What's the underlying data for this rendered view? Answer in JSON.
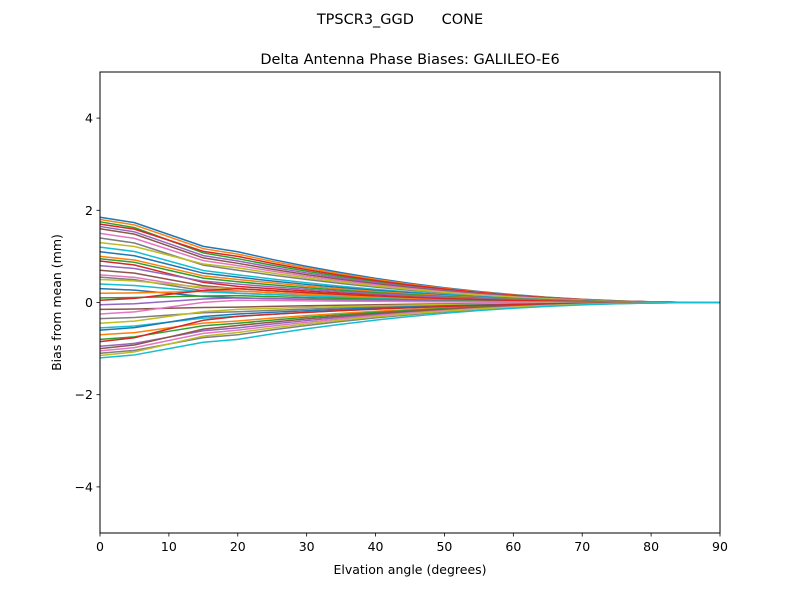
{
  "chart_data": {
    "type": "line",
    "suptitle": "TPSCR3_GGD      CONE",
    "title": "Delta Antenna Phase Biases: GALILEO-E6",
    "xlabel": "Elvation angle (degrees)",
    "ylabel": "Bias from mean (mm)",
    "xlim": [
      0,
      90
    ],
    "ylim": [
      -5,
      5
    ],
    "xticks": [
      0,
      10,
      20,
      30,
      40,
      50,
      60,
      70,
      80,
      90
    ],
    "yticks": [
      -4,
      -2,
      0,
      2,
      4
    ],
    "ytick_labels": [
      "−4",
      "−2",
      "0",
      "2",
      "4"
    ],
    "x": [
      0,
      5,
      10,
      15,
      20,
      25,
      30,
      35,
      40,
      45,
      50,
      55,
      60,
      65,
      70,
      75,
      80,
      85,
      90
    ],
    "color_cycle": [
      "#1f77b4",
      "#ff7f0e",
      "#2ca02c",
      "#d62728",
      "#9467bd",
      "#8c564b",
      "#e377c2",
      "#7f7f7f",
      "#bcbd22",
      "#17becf"
    ],
    "series_start_values": [
      1.85,
      1.8,
      1.75,
      1.7,
      1.65,
      1.6,
      1.5,
      1.4,
      1.3,
      1.2,
      1.1,
      1.0,
      0.95,
      0.9,
      0.8,
      0.7,
      0.6,
      0.55,
      0.5,
      0.4,
      0.3,
      0.2,
      0.1,
      0.05,
      -0.05,
      -0.15,
      -0.25,
      -0.35,
      -0.45,
      -0.55,
      -0.6,
      -0.7,
      -0.8,
      -0.85,
      -0.95,
      -1.0,
      -1.05,
      -1.1,
      -1.15,
      -1.2
    ],
    "series_mid_values": [
      1.1,
      1.05,
      0.95,
      1.0,
      0.9,
      0.85,
      0.8,
      0.7,
      0.75,
      0.6,
      0.55,
      0.5,
      0.45,
      0.35,
      0.4,
      0.3,
      0.25,
      0.2,
      0.3,
      0.2,
      0.1,
      0.25,
      0.15,
      0.3,
      0.1,
      -0.1,
      0.05,
      -0.2,
      -0.15,
      -0.3,
      -0.25,
      -0.4,
      -0.45,
      -0.3,
      -0.55,
      -0.5,
      -0.6,
      -0.7,
      -0.65,
      -0.8
    ]
  }
}
